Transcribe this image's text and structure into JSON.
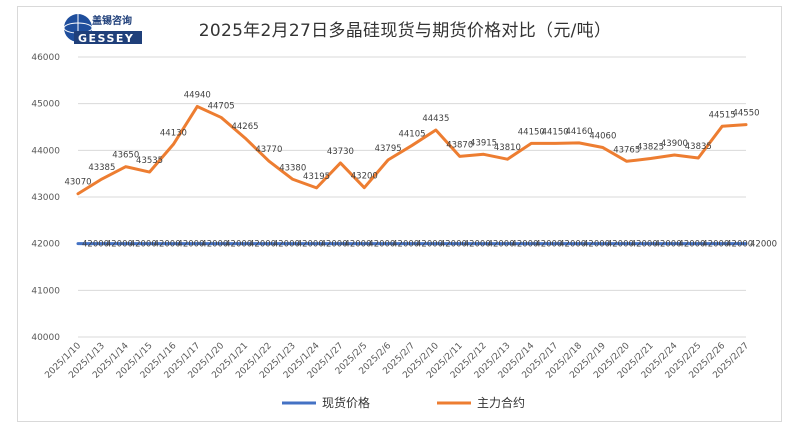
{
  "logo": {
    "brand_cn": "盖锡咨询",
    "brand_en": "GESSEY"
  },
  "chart_data": {
    "type": "line",
    "title": "2025年2月27日多晶硅现货与期货价格对比（元/吨）",
    "categories": [
      "2025/1/10",
      "2025/1/13",
      "2025/1/14",
      "2025/1/15",
      "2025/1/16",
      "2025/1/17",
      "2025/1/20",
      "2025/1/21",
      "2025/1/22",
      "2025/1/23",
      "2025/1/24",
      "2025/1/27",
      "2025/2/5",
      "2025/2/6",
      "2025/2/7",
      "2025/2/10",
      "2025/2/11",
      "2025/2/12",
      "2025/2/13",
      "2025/2/14",
      "2025/2/17",
      "2025/2/18",
      "2025/2/19",
      "2025/2/20",
      "2025/2/21",
      "2025/2/24",
      "2025/2/25",
      "2025/2/26",
      "2025/2/27"
    ],
    "series": [
      {
        "name": "现货价格",
        "color": "#4472C4",
        "values": [
          42000,
          42000,
          42000,
          42000,
          42000,
          42000,
          42000,
          42000,
          42000,
          42000,
          42000,
          42000,
          42000,
          42000,
          42000,
          42000,
          42000,
          42000,
          42000,
          42000,
          42000,
          42000,
          42000,
          42000,
          42000,
          42000,
          42000,
          42000,
          42000
        ]
      },
      {
        "name": "主力合约",
        "color": "#ED7D31",
        "values": [
          43070,
          43385,
          43650,
          43535,
          44130,
          44940,
          44705,
          44265,
          43770,
          43380,
          43195,
          43730,
          43200,
          43795,
          44105,
          44435,
          43870,
          43915,
          43810,
          44150,
          44150,
          44160,
          44060,
          43765,
          43825,
          43900,
          43835,
          44515,
          44550
        ]
      }
    ],
    "ylim": [
      40000,
      46000
    ],
    "yticks": [
      40000,
      41000,
      42000,
      43000,
      44000,
      45000,
      46000
    ],
    "grid": true,
    "legend": "bottom"
  }
}
